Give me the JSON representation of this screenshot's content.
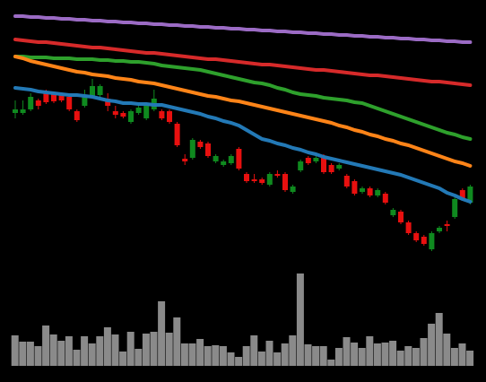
{
  "chart_data": {
    "type": "candlestick",
    "up_color": "#0f8a1f",
    "down_color": "#e8100f",
    "background": "#000000",
    "ylim": [
      0,
      290
    ],
    "open": [
      164,
      164,
      168,
      178,
      186,
      186,
      184,
      182,
      166,
      172,
      182,
      184,
      180,
      166,
      164,
      154,
      164,
      158,
      168,
      166,
      166,
      152,
      113,
      114,
      132,
      130,
      110,
      106,
      108,
      124,
      96,
      90,
      90,
      84,
      96,
      96,
      76,
      100,
      114,
      110,
      116,
      106,
      102,
      94,
      88,
      76,
      80,
      72,
      74,
      50,
      54,
      42,
      30,
      26,
      12,
      32,
      40,
      48,
      78,
      64
    ],
    "high": [
      178,
      178,
      186,
      180,
      190,
      188,
      186,
      184,
      168,
      190,
      202,
      196,
      186,
      172,
      166,
      168,
      172,
      176,
      190,
      168,
      168,
      154,
      118,
      136,
      134,
      132,
      118,
      112,
      118,
      126,
      98,
      96,
      92,
      98,
      100,
      98,
      84,
      112,
      116,
      116,
      118,
      108,
      108,
      96,
      90,
      82,
      82,
      80,
      76,
      58,
      56,
      44,
      32,
      28,
      32,
      38,
      44,
      70,
      80,
      84
    ],
    "low": [
      158,
      162,
      166,
      168,
      174,
      175,
      176,
      166,
      154,
      170,
      180,
      182,
      166,
      158,
      158,
      152,
      162,
      156,
      166,
      156,
      152,
      126,
      106,
      112,
      124,
      114,
      108,
      104,
      106,
      100,
      86,
      86,
      84,
      82,
      92,
      76,
      74,
      98,
      106,
      108,
      96,
      96,
      100,
      80,
      72,
      74,
      70,
      70,
      62,
      48,
      40,
      28,
      20,
      16,
      10,
      30,
      32,
      46,
      66,
      62
    ],
    "close": [
      168,
      168,
      182,
      172,
      176,
      177,
      178,
      168,
      156,
      182,
      194,
      194,
      172,
      162,
      160,
      166,
      170,
      174,
      180,
      158,
      154,
      128,
      110,
      134,
      126,
      116,
      116,
      110,
      116,
      102,
      88,
      88,
      86,
      96,
      94,
      78,
      82,
      110,
      108,
      114,
      98,
      98,
      106,
      82,
      74,
      80,
      72,
      78,
      64,
      56,
      42,
      30,
      22,
      18,
      30,
      36,
      38,
      68,
      68,
      82
    ],
    "series": [
      {
        "color": "#9b6bc4",
        "values": [
          272,
          272,
          271,
          271,
          270,
          270,
          269,
          269,
          268,
          268,
          267,
          267,
          266,
          266,
          265,
          265,
          264,
          264,
          263,
          263,
          262,
          262,
          261,
          261,
          260,
          260,
          259,
          259,
          258,
          258,
          257,
          257,
          256,
          256,
          255,
          255,
          254,
          254,
          253,
          253,
          252,
          252,
          251,
          251,
          250,
          250,
          249,
          249,
          248,
          248,
          247,
          247,
          246,
          246,
          245,
          245,
          244,
          244,
          243,
          243
        ]
      },
      {
        "color": "#d62a2a",
        "values": [
          246,
          245,
          244,
          243,
          243,
          242,
          241,
          240,
          239,
          238,
          237,
          237,
          236,
          235,
          234,
          233,
          232,
          231,
          231,
          230,
          229,
          228,
          227,
          226,
          225,
          224,
          224,
          223,
          222,
          221,
          220,
          219,
          218,
          218,
          217,
          216,
          215,
          214,
          213,
          212,
          212,
          211,
          210,
          209,
          208,
          207,
          206,
          206,
          205,
          204,
          203,
          202,
          201,
          200,
          199,
          199,
          198,
          197,
          196,
          195
        ]
      },
      {
        "color": "#2ea02c",
        "values": [
          227,
          227,
          226,
          226,
          226,
          225,
          225,
          225,
          224,
          224,
          224,
          223,
          223,
          222,
          222,
          221,
          221,
          220,
          219,
          217,
          216,
          215,
          214,
          213,
          212,
          210,
          208,
          206,
          204,
          202,
          200,
          198,
          197,
          195,
          192,
          190,
          187,
          185,
          184,
          183,
          181,
          180,
          179,
          178,
          176,
          175,
          172,
          169,
          166,
          163,
          160,
          157,
          154,
          151,
          148,
          145,
          142,
          140,
          137,
          135
        ]
      },
      {
        "color": "#ff8418",
        "values": [
          227,
          225,
          222,
          220,
          218,
          216,
          214,
          212,
          210,
          209,
          207,
          206,
          205,
          203,
          202,
          201,
          199,
          198,
          197,
          195,
          193,
          191,
          189,
          187,
          185,
          183,
          182,
          180,
          178,
          177,
          175,
          173,
          171,
          169,
          167,
          165,
          163,
          161,
          159,
          157,
          155,
          153,
          150,
          148,
          145,
          143,
          140,
          138,
          135,
          133,
          130,
          128,
          125,
          122,
          119,
          116,
          113,
          110,
          108,
          105
        ]
      },
      {
        "color": "#2379b6",
        "values": [
          192,
          191,
          190,
          188,
          187,
          186,
          185,
          184,
          184,
          183,
          182,
          180,
          178,
          177,
          175,
          175,
          174,
          174,
          173,
          173,
          171,
          169,
          167,
          165,
          163,
          160,
          158,
          155,
          153,
          150,
          145,
          140,
          135,
          133,
          130,
          128,
          125,
          123,
          120,
          118,
          115,
          113,
          111,
          109,
          107,
          105,
          103,
          101,
          99,
          97,
          95,
          92,
          89,
          86,
          83,
          80,
          75,
          72,
          68,
          65
        ]
      }
    ],
    "volume": {
      "color": "#8a8a8a",
      "ylim": [
        0,
        110
      ],
      "values": [
        34,
        27,
        27,
        22,
        45,
        35,
        28,
        33,
        18,
        33,
        25,
        33,
        43,
        35,
        16,
        38,
        19,
        36,
        38,
        72,
        37,
        54,
        25,
        25,
        30,
        22,
        23,
        22,
        15,
        10,
        22,
        34,
        16,
        28,
        15,
        25,
        34,
        103,
        24,
        22,
        22,
        7,
        20,
        32,
        26,
        20,
        33,
        25,
        26,
        28,
        17,
        22,
        20,
        31,
        47,
        59,
        36,
        20,
        25,
        17
      ]
    }
  }
}
